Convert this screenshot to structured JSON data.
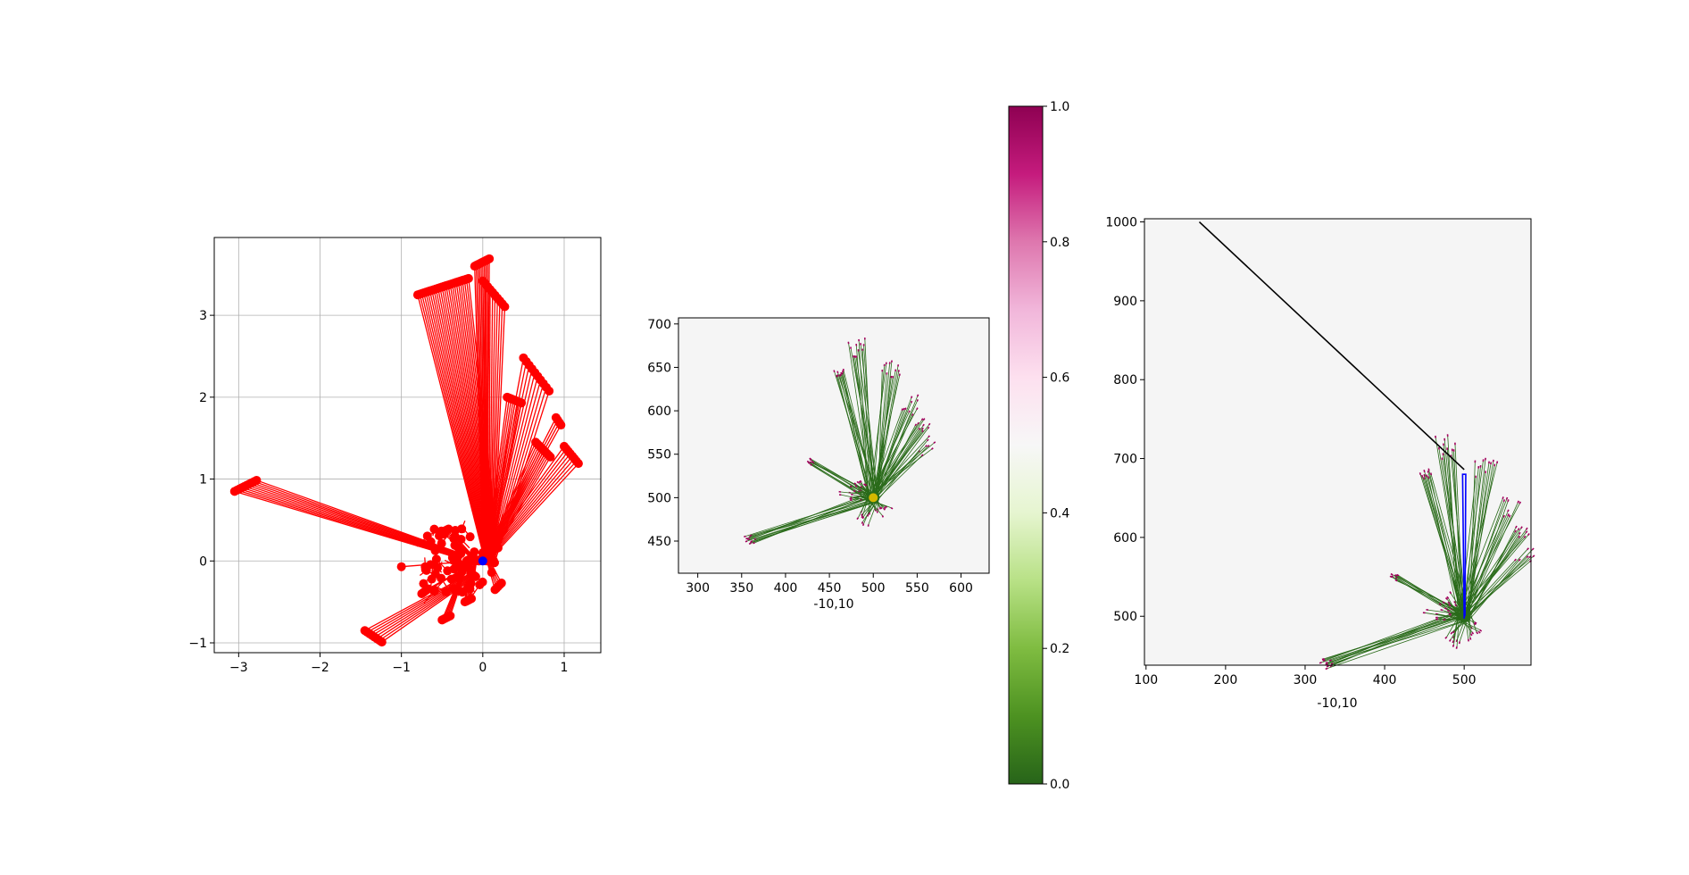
{
  "chart_data": [
    {
      "type": "line",
      "panel": "left",
      "xlim": [
        -3.3,
        1.45
      ],
      "ylim": [
        3.95,
        -1.12
      ],
      "y_inverted": true,
      "grid": true,
      "xticks": [
        -3,
        -2,
        -1,
        0,
        1
      ],
      "yticks": [
        -1,
        0,
        1,
        2,
        3
      ],
      "xtick_labels": [
        "−3",
        "−2",
        "−1",
        "0",
        "1"
      ],
      "ytick_labels": [
        "−1",
        "0",
        "1",
        "2",
        "3"
      ],
      "xlabel": "",
      "ylabel": "",
      "series_color": "#ff0000",
      "origin_color": "#0000ff",
      "origin": [
        0,
        0
      ],
      "segments": [
        {
          "from": [
            -0.35,
            0.05
          ],
          "to": [
            -3.05,
            0.85
          ],
          "count": 10,
          "dx": 0.03,
          "dy": 0.015
        },
        {
          "from": [
            -0.15,
            -0.15
          ],
          "to": [
            -1.45,
            -0.85
          ],
          "count": 8,
          "dx": 0.03,
          "dy": -0.02
        },
        {
          "from": [
            0.0,
            0.1
          ],
          "to": [
            -0.8,
            3.25
          ],
          "count": 26,
          "dx": 0.025,
          "dy": 0.008
        },
        {
          "from": [
            0.0,
            0.1
          ],
          "to": [
            -0.1,
            3.6
          ],
          "count": 10,
          "dx": 0.02,
          "dy": 0.01
        },
        {
          "from": [
            0.05,
            0.1
          ],
          "to": [
            0.0,
            3.42
          ],
          "count": 10,
          "dx": 0.03,
          "dy": -0.035
        },
        {
          "from": [
            0.05,
            0.1
          ],
          "to": [
            0.3,
            2.0
          ],
          "count": 8,
          "dx": 0.025,
          "dy": -0.01
        },
        {
          "from": [
            0.05,
            0.1
          ],
          "to": [
            0.5,
            2.48
          ],
          "count": 10,
          "dx": 0.035,
          "dy": -0.045
        },
        {
          "from": [
            0.05,
            0.1
          ],
          "to": [
            0.65,
            1.45
          ],
          "count": 10,
          "dx": 0.02,
          "dy": -0.02
        },
        {
          "from": [
            0.05,
            0.1
          ],
          "to": [
            0.9,
            1.75
          ],
          "count": 4,
          "dx": 0.02,
          "dy": -0.03
        },
        {
          "from": [
            0.05,
            0.1
          ],
          "to": [
            1.0,
            1.4
          ],
          "count": 8,
          "dx": 0.025,
          "dy": -0.03
        },
        {
          "from": [
            -0.2,
            0.0
          ],
          "to": [
            -0.5,
            -0.72
          ],
          "count": 6,
          "dx": 0.02,
          "dy": 0.01
        },
        {
          "from": [
            -0.1,
            0.0
          ],
          "to": [
            -0.22,
            -0.5
          ],
          "count": 5,
          "dx": 0.02,
          "dy": 0.01
        },
        {
          "from": [
            -0.05,
            0.0
          ],
          "to": [
            -0.75,
            -0.4
          ],
          "count": 5,
          "dx": 0.02,
          "dy": 0.015
        },
        {
          "from": [
            -0.1,
            0.0
          ],
          "to": [
            -1.0,
            -0.07
          ],
          "count": 1,
          "dx": 0,
          "dy": 0
        },
        {
          "from": [
            0.05,
            0.0
          ],
          "to": [
            0.15,
            -0.35
          ],
          "count": 5,
          "dx": 0.02,
          "dy": 0.02
        },
        {
          "from": [
            -0.1,
            0.0
          ],
          "to": [
            -0.5,
            0.35
          ],
          "count": 5,
          "dx": 0.02,
          "dy": 0.01
        }
      ],
      "cluster": {
        "x_range": [
          -0.75,
          0.15
        ],
        "y_range": [
          -0.4,
          0.4
        ],
        "count": 60
      }
    },
    {
      "type": "image",
      "panel": "middle",
      "xlim": [
        278,
        632
      ],
      "ylim": [
        707,
        413
      ],
      "y_inverted": true,
      "grid": false,
      "xticks": [
        300,
        350,
        400,
        450,
        500,
        550,
        600
      ],
      "yticks": [
        450,
        500,
        550,
        600,
        650,
        700
      ],
      "xlabel": "-10,10",
      "background_color": "#f5f5f5",
      "fan_color": "#2a6b1a",
      "tip_color": "#a1005c",
      "origin_color": "#d4b800",
      "origin": [
        500,
        500
      ],
      "scale": 40
    },
    {
      "type": "colorbar",
      "panel": "colorbar",
      "range": [
        0,
        1
      ],
      "ticks": [
        0.0,
        0.2,
        0.4,
        0.6,
        0.8,
        1.0
      ],
      "tick_labels": [
        "0.0",
        "0.2",
        "0.4",
        "0.6",
        "0.8",
        "1.0"
      ],
      "colormap": "PiYG_r",
      "colors": [
        "#276419",
        "#4d9221",
        "#7fbc41",
        "#b8e186",
        "#e6f5d0",
        "#f7f7f7",
        "#fde0ef",
        "#f1b6da",
        "#de77ae",
        "#c51b7d",
        "#8e0152"
      ]
    },
    {
      "type": "image",
      "panel": "right",
      "xlim": [
        98,
        584
      ],
      "ylim": [
        1004,
        438
      ],
      "y_inverted": true,
      "grid": false,
      "xticks": [
        100,
        200,
        300,
        400,
        500
      ],
      "yticks": [
        500,
        600,
        700,
        800,
        900,
        1000
      ],
      "xlabel": "-10,10",
      "background_color": "#f5f5f5",
      "fan_color": "#2a6b1a",
      "tip_color": "#a1005c",
      "path_color": "#0000ff",
      "line_color": "#000000",
      "origin": [
        500,
        500
      ],
      "scale": 50,
      "blue_path": [
        [
          500,
          497
        ],
        [
          498,
          680
        ],
        [
          502,
          680
        ],
        [
          501,
          500
        ]
      ],
      "black_line": [
        [
          500,
          686
        ],
        [
          167,
          1000
        ]
      ]
    }
  ]
}
